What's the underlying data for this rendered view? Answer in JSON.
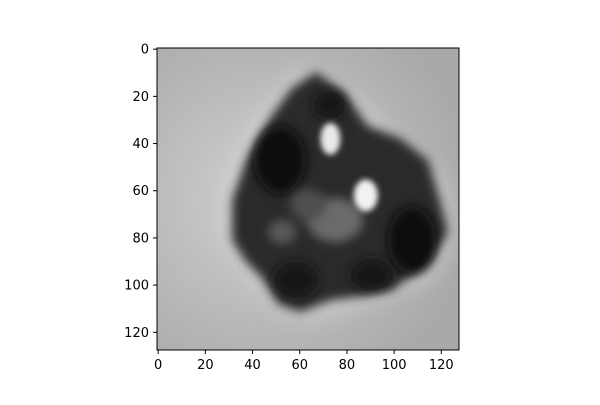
{
  "chart_data": {
    "type": "heatmap",
    "colormap": "gray",
    "image_size": [
      128,
      128
    ],
    "title": "",
    "xlabel": "",
    "ylabel": "",
    "xlim": [
      0,
      127
    ],
    "ylim": [
      127,
      0
    ],
    "x_ticks": [
      0,
      20,
      40,
      60,
      80,
      100,
      120
    ],
    "y_ticks": [
      0,
      20,
      40,
      60,
      80,
      100,
      120
    ],
    "y_axis_inverted": true,
    "grid": false,
    "description_subject": "blurred grayscale micrograph of an irregular dark particle",
    "intensity_range": [
      0,
      1
    ],
    "background_intensity": 0.72,
    "particle_center": [
      78,
      60
    ],
    "bright_spots": [
      {
        "x": 73,
        "y": 38,
        "intensity": 0.95
      },
      {
        "x": 88,
        "y": 62,
        "intensity": 0.98
      }
    ]
  }
}
